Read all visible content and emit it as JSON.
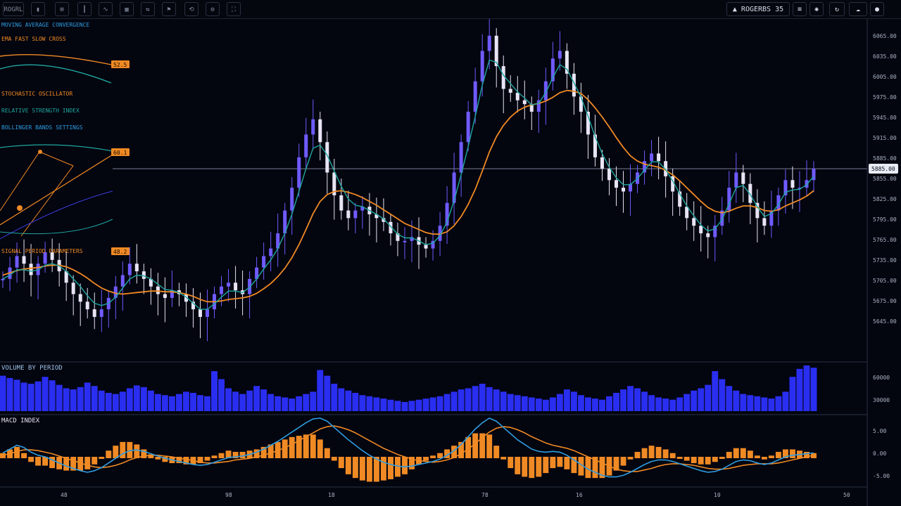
{
  "toolbar": {
    "left_label": "ROGRL",
    "symbol_label": "ROGERBS 35",
    "icons": [
      "menu-icon",
      "bar-icon",
      "grid-icon",
      "candles-icon",
      "indicator-icon",
      "layout-icon",
      "compare-icon",
      "alert-icon",
      "replay-icon",
      "settings-icon",
      "fullscreen-icon"
    ]
  },
  "colors": {
    "background": "#03050f",
    "candle_up": "#6f5bff",
    "candle_down": "#e8e4f5",
    "ma_fast": "#1fa7a0",
    "ma_slow": "#f08a24",
    "volume": "#2a2ef0",
    "macd_line": "#2f9ce0",
    "signal_line": "#f08a24",
    "histogram": "#f08a24"
  },
  "price_pane": {
    "price_labels": [
      "6065.00",
      "6035.00",
      "6005.00",
      "5975.00",
      "5945.00",
      "5915.00",
      "5885.00",
      "5855.00",
      "5825.00",
      "5795.00",
      "5765.00",
      "5735.00",
      "5705.00",
      "5675.00",
      "5645.00"
    ],
    "last_price_label": "5885.00",
    "horizontal_line_price": 5885
  },
  "volume_pane": {
    "title": "VOLUME BY PERIOD",
    "labels": [
      "60000",
      "30000"
    ]
  },
  "macd_pane": {
    "title": "MACD INDEX",
    "labels": [
      "5.00",
      "0.00",
      "-5.00"
    ]
  },
  "time_axis": [
    "48",
    "98",
    "18",
    "78",
    "16",
    "10",
    "50"
  ],
  "overlay_panel": {
    "lines": [
      "MOVING AVERAGE CONVERGENCE",
      "EMA FAST SLOW CROSS",
      "STOCHASTIC OSCILLATOR",
      "RELATIVE STRENGTH INDEX",
      "BOLLINGER BANDS SETTINGS",
      "SIGNAL PERIOD PARAMETERS"
    ],
    "badges": [
      "52.5",
      "60.1",
      "48.2"
    ]
  },
  "chart_data": {
    "type": "line",
    "title": "",
    "xlabel": "",
    "ylabel": "",
    "ylim": [
      5640,
      6070
    ],
    "x": [
      0,
      1,
      2,
      3,
      4,
      5,
      6,
      7,
      8,
      9,
      10,
      11,
      12,
      13,
      14,
      15,
      16,
      17,
      18,
      19,
      20,
      21,
      22,
      23,
      24,
      25,
      26,
      27,
      28,
      29,
      30,
      31,
      32,
      33,
      34,
      35,
      36,
      37,
      38,
      39,
      40,
      41,
      42,
      43,
      44,
      45,
      46,
      47,
      48,
      49,
      50,
      51,
      52,
      53,
      54,
      55,
      56,
      57,
      58,
      59,
      60,
      61,
      62,
      63,
      64,
      65,
      66,
      67,
      68,
      69,
      70,
      71,
      72,
      73,
      74,
      75,
      76,
      77,
      78,
      79,
      80,
      81,
      82,
      83,
      84,
      85,
      86,
      87,
      88,
      89,
      90,
      91,
      92,
      93,
      94,
      95,
      96,
      97,
      98,
      99,
      100,
      101,
      102,
      103,
      104,
      105,
      106,
      107,
      108,
      109,
      110,
      111,
      112,
      113,
      114,
      115
    ],
    "series": [
      {
        "name": "",
        "values": [
          5740,
          5755,
          5770,
          5760,
          5745,
          5760,
          5775,
          5765,
          5750,
          5735,
          5720,
          5710,
          5700,
          5690,
          5700,
          5715,
          5730,
          5745,
          5760,
          5750,
          5740,
          5730,
          5720,
          5715,
          5725,
          5720,
          5710,
          5700,
          5690,
          5700,
          5720,
          5730,
          5735,
          5725,
          5720,
          5740,
          5755,
          5770,
          5780,
          5800,
          5830,
          5860,
          5900,
          5930,
          5950,
          5920,
          5880,
          5850,
          5830,
          5820,
          5830,
          5835,
          5825,
          5820,
          5815,
          5800,
          5790,
          5790,
          5795,
          5785,
          5780,
          5790,
          5810,
          5840,
          5880,
          5920,
          5960,
          6000,
          6040,
          6060,
          6020,
          5990,
          5985,
          5975,
          5970,
          5960,
          5975,
          6000,
          6030,
          6040,
          6010,
          5980,
          5960,
          5930,
          5900,
          5885,
          5870,
          5860,
          5855,
          5865,
          5880,
          5895,
          5905,
          5895,
          5875,
          5855,
          5835,
          5820,
          5810,
          5800,
          5795,
          5810,
          5830,
          5860,
          5880,
          5865,
          5840,
          5820,
          5810,
          5830,
          5850,
          5870,
          5860,
          5860,
          5870,
          5885
        ]
      }
    ],
    "ma_fast": [
      5740,
      5745,
      5752,
      5752,
      5750,
      5752,
      5758,
      5760,
      5757,
      5750,
      5740,
      5730,
      5718,
      5708,
      5705,
      5708,
      5716,
      5728,
      5740,
      5745,
      5744,
      5740,
      5733,
      5726,
      5725,
      5722,
      5716,
      5708,
      5700,
      5700,
      5707,
      5716,
      5724,
      5724,
      5722,
      5729,
      5740,
      5753,
      5765,
      5780,
      5800,
      5825,
      5855,
      5885,
      5912,
      5916,
      5903,
      5882,
      5862,
      5845,
      5837,
      5835,
      5830,
      5825,
      5819,
      5809,
      5799,
      5794,
      5794,
      5790,
      5785,
      5787,
      5797,
      5815,
      5843,
      5877,
      5914,
      5954,
      5995,
      6028,
      6025,
      6008,
      5997,
      5986,
      5978,
      5969,
      5971,
      5985,
      6005,
      6022,
      6016,
      5998,
      5979,
      5954,
      5927,
      5905,
      5887,
      5873,
      5864,
      5864,
      5872,
      5883,
      5894,
      5894,
      5884,
      5869,
      5852,
      5836,
      5823,
      5811,
      5803,
      5806,
      5818,
      5839,
      5860,
      5863,
      5851,
      5835,
      5822,
      5826,
      5838,
      5854,
      5857,
      5858,
      5864,
      5875
    ],
    "ma_slow": [
      5745,
      5748,
      5751,
      5753,
      5754,
      5755,
      5757,
      5758,
      5758,
      5756,
      5752,
      5747,
      5741,
      5734,
      5728,
      5724,
      5721,
      5720,
      5721,
      5722,
      5723,
      5724,
      5724,
      5723,
      5723,
      5722,
      5720,
      5717,
      5713,
      5710,
      5710,
      5711,
      5713,
      5714,
      5715,
      5717,
      5721,
      5727,
      5734,
      5743,
      5754,
      5768,
      5785,
      5805,
      5826,
      5842,
      5851,
      5855,
      5856,
      5854,
      5851,
      5847,
      5842,
      5837,
      5831,
      5825,
      5819,
      5813,
      5809,
      5805,
      5801,
      5799,
      5799,
      5802,
      5810,
      5822,
      5838,
      5858,
      5882,
      5907,
      5927,
      5942,
      5953,
      5961,
      5966,
      5969,
      5971,
      5974,
      5979,
      5985,
      5988,
      5987,
      5984,
      5976,
      5965,
      5953,
      5940,
      5926,
      5913,
      5902,
      5895,
      5891,
      5889,
      5887,
      5883,
      5877,
      5869,
      5860,
      5851,
      5842,
      5834,
      5829,
      5827,
      5829,
      5833,
      5836,
      5836,
      5834,
      5830,
      5829,
      5831,
      5836,
      5840,
      5844,
      5849,
      5856
    ],
    "volume": [
      62,
      58,
      55,
      50,
      48,
      52,
      60,
      54,
      46,
      40,
      38,
      42,
      50,
      44,
      36,
      32,
      30,
      34,
      40,
      45,
      42,
      36,
      30,
      28,
      26,
      30,
      34,
      32,
      28,
      26,
      70,
      56,
      40,
      34,
      30,
      36,
      44,
      38,
      30,
      26,
      24,
      22,
      26,
      30,
      34,
      72,
      62,
      48,
      40,
      36,
      32,
      28,
      26,
      24,
      22,
      20,
      18,
      16,
      18,
      20,
      22,
      24,
      26,
      30,
      34,
      38,
      40,
      44,
      48,
      42,
      38,
      34,
      30,
      28,
      26,
      24,
      22,
      20,
      24,
      30,
      38,
      34,
      28,
      24,
      22,
      20,
      26,
      32,
      38,
      44,
      40,
      34,
      28,
      24,
      22,
      20,
      24,
      30,
      36,
      40,
      46,
      70,
      56,
      44,
      36,
      30,
      28,
      26,
      24,
      22,
      26,
      34,
      60,
      74,
      80,
      76
    ],
    "macd": [
      0.5,
      1.0,
      1.5,
      1.2,
      0.6,
      0.2,
      0.0,
      -0.4,
      -0.8,
      -1.2,
      -1.5,
      -1.8,
      -2.0,
      -1.8,
      -1.4,
      -0.8,
      -0.2,
      0.4,
      0.8,
      0.9,
      0.7,
      0.4,
      0.1,
      -0.2,
      -0.4,
      -0.6,
      -0.8,
      -1.0,
      -1.1,
      -1.0,
      -0.7,
      -0.4,
      -0.1,
      0.0,
      0.1,
      0.3,
      0.6,
      1.0,
      1.5,
      2.0,
      2.6,
      3.2,
      3.8,
      4.4,
      4.9,
      5.0,
      4.6,
      3.8,
      3.0,
      2.2,
      1.5,
      0.8,
      0.2,
      -0.3,
      -0.7,
      -1.0,
      -1.2,
      -1.3,
      -1.2,
      -1.0,
      -0.8,
      -0.6,
      -0.3,
      0.2,
      0.8,
      1.6,
      2.6,
      3.6,
      4.4,
      5.0,
      4.6,
      3.8,
      3.0,
      2.2,
      1.6,
      1.0,
      0.7,
      0.6,
      0.7,
      0.6,
      0.2,
      -0.4,
      -1.0,
      -1.6,
      -2.0,
      -2.4,
      -2.6,
      -2.6,
      -2.4,
      -2.0,
      -1.5,
      -1.0,
      -0.6,
      -0.4,
      -0.4,
      -0.6,
      -0.9,
      -1.2,
      -1.5,
      -1.8,
      -2.0,
      -1.9,
      -1.6,
      -1.1,
      -0.6,
      -0.4,
      -0.5,
      -0.8,
      -1.0,
      -0.8,
      -0.4,
      0.0,
      0.2,
      0.3,
      0.4,
      0.5
    ],
    "signal": [
      0.2,
      0.4,
      0.7,
      0.9,
      0.9,
      0.8,
      0.6,
      0.4,
      0.1,
      -0.2,
      -0.5,
      -0.8,
      -1.1,
      -1.3,
      -1.4,
      -1.3,
      -1.1,
      -0.8,
      -0.4,
      -0.1,
      0.1,
      0.2,
      0.2,
      0.1,
      0.0,
      -0.2,
      -0.3,
      -0.5,
      -0.7,
      -0.8,
      -0.8,
      -0.7,
      -0.6,
      -0.4,
      -0.3,
      -0.2,
      0.0,
      0.2,
      0.5,
      0.8,
      1.2,
      1.6,
      2.1,
      2.6,
      3.1,
      3.6,
      3.9,
      4.0,
      3.8,
      3.5,
      3.1,
      2.6,
      2.1,
      1.6,
      1.1,
      0.7,
      0.3,
      0.0,
      -0.3,
      -0.5,
      -0.6,
      -0.7,
      -0.6,
      -0.4,
      -0.1,
      0.4,
      1.0,
      1.7,
      2.5,
      3.2,
      3.7,
      3.9,
      3.8,
      3.5,
      3.1,
      2.6,
      2.2,
      1.8,
      1.5,
      1.3,
      1.1,
      0.8,
      0.4,
      0.0,
      -0.4,
      -0.8,
      -1.2,
      -1.6,
      -1.8,
      -1.9,
      -1.9,
      -1.7,
      -1.5,
      -1.2,
      -1.0,
      -0.9,
      -0.9,
      -1.0,
      -1.1,
      -1.3,
      -1.5,
      -1.6,
      -1.6,
      -1.5,
      -1.3,
      -1.1,
      -1.0,
      -0.9,
      -0.9,
      -0.9,
      -0.8,
      -0.6,
      -0.4,
      -0.2,
      0.0,
      0.2
    ]
  }
}
